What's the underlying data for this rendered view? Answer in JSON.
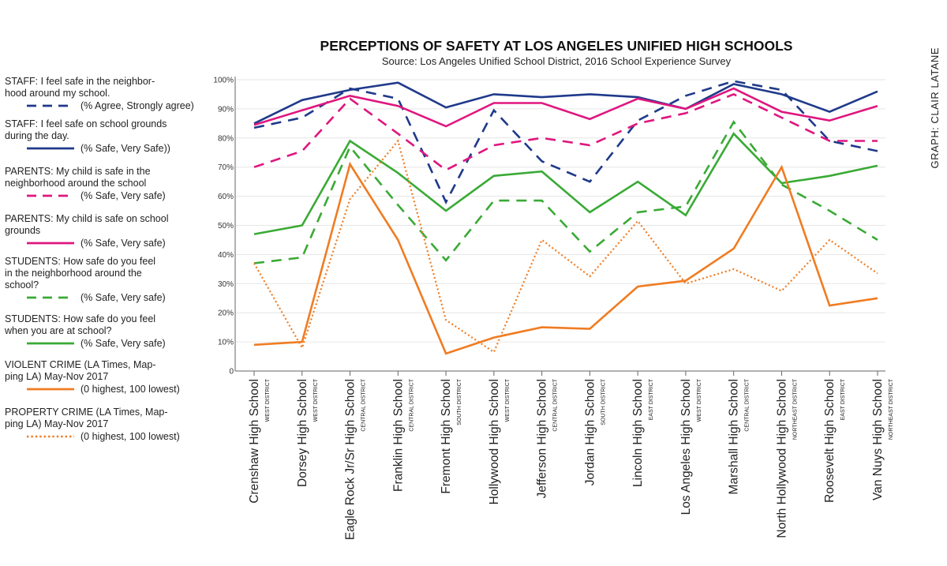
{
  "chart_data": {
    "type": "line",
    "title": "PERCEPTIONS OF SAFETY AT LOS ANGELES UNIFIED HIGH SCHOOLS",
    "subtitle": "Source: Los Angeles Unified School District, 2016 School Experience Survey",
    "credit": "GRAPH: CLAIR LATANE",
    "ylim": [
      0,
      100
    ],
    "yticks": [
      "0",
      "10%",
      "20%",
      "30%",
      "40%",
      "50%",
      "60%",
      "70%",
      "80%",
      "90%",
      "100%"
    ],
    "categories": [
      {
        "name": "Crenshaw High School",
        "district": "WEST DISTRICT"
      },
      {
        "name": "Dorsey High School",
        "district": "WEST DISTRICT"
      },
      {
        "name": "Eagle Rock Jr/Sr High School",
        "district": "CENTRAL DISTRICT"
      },
      {
        "name": "Franklin High School",
        "district": "CENTRAL DISTRICT"
      },
      {
        "name": "Fremont High School",
        "district": "SOUTH DISTRICT"
      },
      {
        "name": "Hollywood High School",
        "district": "WEST DISTRICT"
      },
      {
        "name": "Jefferson High School",
        "district": "CENTRAL DISTRICT"
      },
      {
        "name": "Jordan High School",
        "district": "SOUTH DISTRICT"
      },
      {
        "name": "Lincoln High School",
        "district": "EAST DISTRICT"
      },
      {
        "name": "Los Angeles High School",
        "district": "WEST DISTRICT"
      },
      {
        "name": "Marshall High School",
        "district": "CENTRAL DISTRICT"
      },
      {
        "name": "North Hollywood High School",
        "district": "NORTHEAST DISTRICT"
      },
      {
        "name": "Roosevelt High School",
        "district": "EAST DISTRICT"
      },
      {
        "name": "Van Nuys High School",
        "district": "NORTHEAST DISTRICT"
      }
    ],
    "series": [
      {
        "name": "staff-neighborhood",
        "label_lines": [
          "STAFF: I feel safe in the neighbor-",
          "hood around my school."
        ],
        "note": "(% Agree, Strongly agree)",
        "color": "#1f3a8a",
        "style": "dashed",
        "values": [
          83.5,
          87,
          97,
          93.5,
          58,
          89.5,
          72,
          65,
          86,
          94.5,
          99.5,
          96.5,
          79,
          75.5
        ]
      },
      {
        "name": "staff-school-grounds",
        "label_lines": [
          "STAFF: I feel safe on school grounds",
          "during the day."
        ],
        "note": "(% Safe, Very Safe))",
        "color": "#1f3a8a",
        "style": "solid",
        "values": [
          85,
          93,
          96.5,
          99,
          90.5,
          95,
          94,
          95,
          94,
          90,
          98.5,
          95,
          89,
          96
        ]
      },
      {
        "name": "parents-neighborhood",
        "label_lines": [
          "PARENTS: My child is safe in the",
          "neighborhood around the school"
        ],
        "note": "(% Safe, Very safe)",
        "color": "#e0167f",
        "style": "dashed",
        "values": [
          70,
          75.5,
          93.5,
          81.5,
          69,
          77.5,
          80,
          77.5,
          85,
          88.5,
          95,
          87,
          79,
          79
        ]
      },
      {
        "name": "parents-school-grounds",
        "label_lines": [
          "PARENTS: My child is safe on school",
          "grounds"
        ],
        "note": "(% Safe, Very safe)",
        "color": "#e0167f",
        "style": "solid",
        "values": [
          84.5,
          89.5,
          94.5,
          91,
          84,
          92,
          92,
          86.5,
          93.5,
          90,
          97,
          89,
          86,
          91
        ]
      },
      {
        "name": "students-neighborhood",
        "label_lines": [
          "STUDENTS: How safe do you feel",
          "in the neighborhood around the",
          "school?"
        ],
        "note": "(% Safe, Very safe)",
        "color": "#3aaa35",
        "style": "dashed",
        "values": [
          37,
          39,
          77,
          57,
          38,
          58.5,
          58.5,
          41,
          54.5,
          56.5,
          85.5,
          64,
          55,
          45
        ]
      },
      {
        "name": "students-at-school",
        "label_lines": [
          "STUDENTS: How safe do you feel",
          "when you are at school?"
        ],
        "note": "(% Safe, Very safe)",
        "color": "#3aaa35",
        "style": "solid",
        "values": [
          47,
          50,
          79,
          68,
          55,
          67,
          68.5,
          54.5,
          65,
          53.5,
          81.5,
          64.5,
          67,
          70.5
        ]
      },
      {
        "name": "violent-crime",
        "label_lines": [
          "VIOLENT CRIME  (LA Times, Map-",
          "ping LA) May-Nov 2017"
        ],
        "note": "(0 highest, 100 lowest)",
        "color": "#f07c22",
        "style": "solid",
        "values": [
          9,
          10,
          71,
          45,
          6,
          11.5,
          15,
          14.5,
          29,
          31,
          42,
          70,
          22.5,
          25
        ]
      },
      {
        "name": "property-crime",
        "label_lines": [
          "PROPERTY CRIME (LA Times, Map-",
          "ping LA) May-Nov 2017"
        ],
        "note": "(0 highest, 100 lowest)",
        "color": "#f07c22",
        "style": "dotted",
        "values": [
          37,
          8,
          59,
          79,
          17.5,
          6.5,
          45,
          32.5,
          51.5,
          30,
          35,
          27.5,
          45,
          33.5
        ]
      }
    ]
  }
}
